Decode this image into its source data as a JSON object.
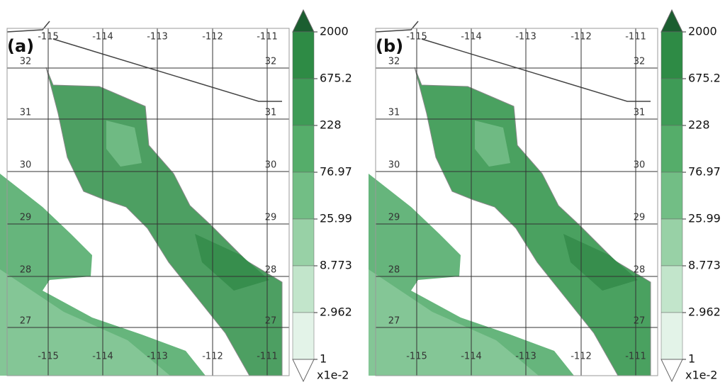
{
  "panels": [
    {
      "label": "(a)"
    },
    {
      "label": "(b)"
    }
  ],
  "lon_labels": [
    "-115",
    "-114",
    "-113",
    "-112",
    "-111"
  ],
  "lat_labels": [
    "32",
    "31",
    "30",
    "29",
    "28",
    "27"
  ],
  "colorbar": {
    "levels": [
      "2000",
      "675.2",
      "228",
      "76.97",
      "25.99",
      "8.773",
      "2.962",
      "1"
    ],
    "unit": "x1e-2"
  }
}
